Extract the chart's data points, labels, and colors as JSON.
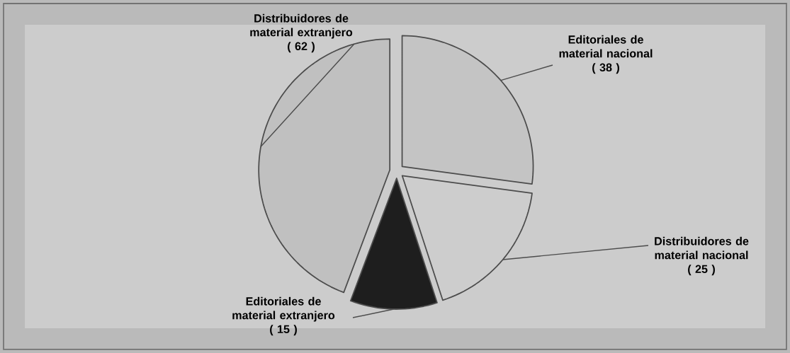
{
  "chart_data": {
    "type": "pie",
    "categories": [
      "Editoriales de material nacional",
      "Distribuidores de material nacional",
      "Editoriales de material extranjero",
      "Distribuidores de material extranjero"
    ],
    "values": [
      38,
      25,
      15,
      62
    ],
    "value_labels": [
      "( 38 )",
      "( 25 )",
      "( 15 )",
      "( 62 )"
    ],
    "colors": [
      "#c4c4c4",
      "#cdcdcd",
      "#1e1e1e",
      "#c0c0c0"
    ]
  }
}
